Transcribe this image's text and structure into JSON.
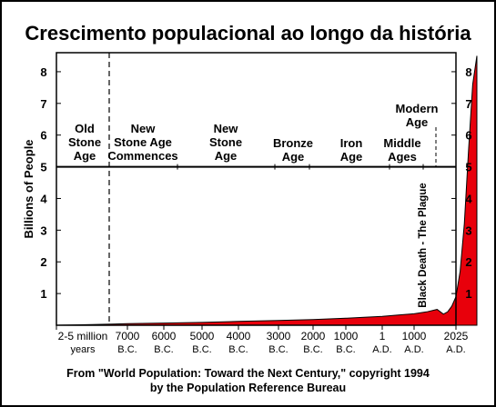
{
  "title": "Crescimento populacional ao longo da história",
  "source_lines": [
    "From \"World Population: Toward the Next Century,\" copyright 1994",
    "by the Population Reference Bureau"
  ],
  "chart_data": {
    "type": "area",
    "ylabel": "Billions of People",
    "ylim": [
      0,
      8.6
    ],
    "yticks": [
      1,
      2,
      3,
      4,
      5,
      6,
      7,
      8
    ],
    "fill_color": "#e8000b",
    "categories": [
      {
        "line1": "2-5 million",
        "line2": "years"
      },
      {
        "line1": "7000",
        "line2": "B.C."
      },
      {
        "line1": "6000",
        "line2": "B.C."
      },
      {
        "line1": "5000",
        "line2": "B.C."
      },
      {
        "line1": "4000",
        "line2": "B.C."
      },
      {
        "line1": "3000",
        "line2": "B.C."
      },
      {
        "line1": "2000",
        "line2": "B.C."
      },
      {
        "line1": "1000",
        "line2": "B.C."
      },
      {
        "line1": "1",
        "line2": "A.D."
      },
      {
        "line1": "1000",
        "line2": "A.D."
      },
      {
        "line1": "2025",
        "line2": "A.D."
      }
    ],
    "series": [
      {
        "x": [
          0,
          0.5,
          1,
          2,
          3,
          4,
          5,
          6,
          7,
          7.5,
          8,
          8.5,
          9,
          9.3,
          9.55,
          9.7,
          9.8,
          9.9,
          10,
          10.1,
          10.2,
          10.3,
          10.4,
          10.5
        ],
        "y": [
          0,
          0.02,
          0.05,
          0.07,
          0.09,
          0.12,
          0.15,
          0.18,
          0.22,
          0.25,
          0.28,
          0.32,
          0.36,
          0.42,
          0.5,
          0.35,
          0.42,
          0.6,
          0.9,
          1.7,
          3.2,
          5.5,
          7.6,
          8.5
        ]
      }
    ],
    "period_labels": [
      {
        "lines": [
          "Old",
          "Stone",
          "Age"
        ]
      },
      {
        "lines": [
          "New",
          "Stone Age",
          "Commences"
        ]
      },
      {
        "lines": [
          "New",
          "Stone",
          "Age"
        ]
      },
      {
        "lines": [
          "Bronze",
          "Age"
        ]
      },
      {
        "lines": [
          "Iron",
          "Age"
        ]
      },
      {
        "lines": [
          "Middle",
          "Ages"
        ]
      },
      {
        "lines": [
          "Modern",
          "Age"
        ]
      }
    ],
    "annotation": "Black Death - The Plague",
    "reference_line_y": 5
  }
}
